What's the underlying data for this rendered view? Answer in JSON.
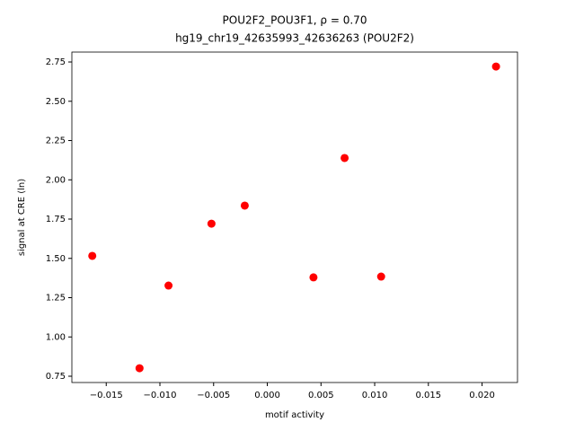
{
  "chart_data": {
    "type": "scatter",
    "title": "POU2F2_POU3F1, ρ = 0.70",
    "subtitle": "hg19_chr19_42635993_42636263 (POU2F2)",
    "x_label": "motif activity",
    "y_label": "signal at CRE (ln)",
    "color": "#ff0000",
    "x": [
      -0.0163,
      -0.0119,
      -0.0092,
      -0.0052,
      -0.0021,
      0.0043,
      0.0072,
      0.0106,
      0.0213
    ],
    "values": [
      1.516,
      0.801,
      1.327,
      1.721,
      1.836,
      1.379,
      2.139,
      1.384,
      2.721
    ],
    "xlim": [
      -0.0182,
      0.0233
    ],
    "ylim": [
      0.71,
      2.813
    ],
    "xticks": [
      {
        "value": -0.015,
        "label": "−0.015"
      },
      {
        "value": -0.01,
        "label": "−0.010"
      },
      {
        "value": -0.005,
        "label": "−0.005"
      },
      {
        "value": 0,
        "label": "0.000"
      },
      {
        "value": 0.005,
        "label": "0.005"
      },
      {
        "value": 0.01,
        "label": "0.010"
      },
      {
        "value": 0.015,
        "label": "0.015"
      },
      {
        "value": 0.02,
        "label": "0.020"
      }
    ],
    "yticks": [
      0.75,
      {
        "value": 1,
        "label": "1.00"
      },
      1.25,
      {
        "value": 1.5,
        "label": "1.50"
      },
      1.75,
      {
        "value": 2,
        "label": "2.00"
      },
      2.25,
      {
        "value": 2.5,
        "label": "2.50"
      },
      2.75
    ],
    "grid": false
  }
}
